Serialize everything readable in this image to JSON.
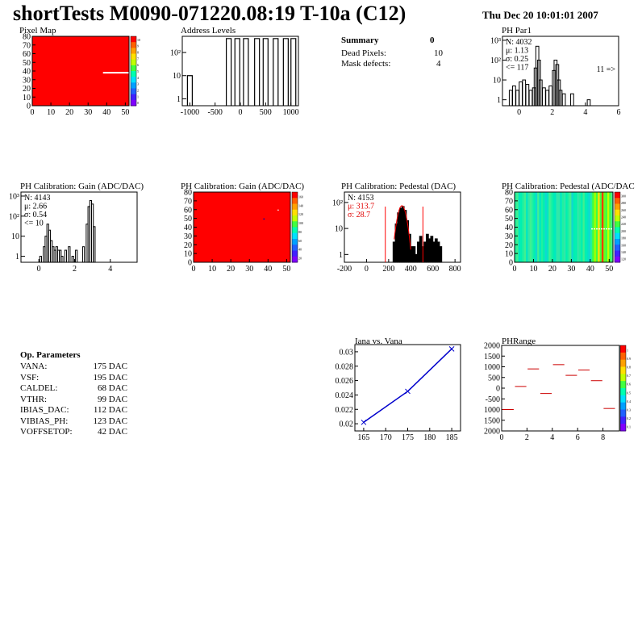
{
  "header": {
    "title": "shortTests M0090-071220.08:19 T-10a (C12)",
    "date": "Thu Dec 20 10:01:01 2007"
  },
  "summary": {
    "title": "Summary",
    "value": "0",
    "rows": [
      {
        "label": "Dead Pixels:",
        "value": "10"
      },
      {
        "label": "Mask defects:",
        "value": "4"
      }
    ]
  },
  "op_params": {
    "title": "Op. Parameters",
    "rows": [
      {
        "label": "VANA:",
        "value": "175 DAC"
      },
      {
        "label": "VSF:",
        "value": "195 DAC"
      },
      {
        "label": "CALDEL:",
        "value": "68 DAC"
      },
      {
        "label": "VTHR:",
        "value": "99 DAC"
      },
      {
        "label": "IBIAS_DAC:",
        "value": "112 DAC"
      },
      {
        "label": "VIBIAS_PH:",
        "value": "123 DAC"
      },
      {
        "label": "VOFFSETOP:",
        "value": "42 DAC"
      }
    ]
  },
  "chart_data": [
    {
      "id": "pixel-map",
      "type": "heatmap",
      "title": "Pixel Map",
      "xlim": [
        0,
        52
      ],
      "ylim": [
        0,
        80
      ],
      "xticks": [
        "0",
        "10",
        "20",
        "30",
        "40",
        "50"
      ],
      "yticks": [
        "0",
        "10",
        "20",
        "30",
        "40",
        "50",
        "60",
        "70",
        "80"
      ],
      "fill_color": "#ff0000",
      "features": [
        {
          "kind": "white-row",
          "x": [
            38,
            52
          ],
          "y": 38
        }
      ],
      "colorbar": [
        "10",
        "9",
        "8",
        "7",
        "6",
        "5",
        "4",
        "3",
        "2",
        "1",
        "0"
      ]
    },
    {
      "id": "address-levels",
      "type": "bar",
      "title": "Address Levels",
      "xlim": [
        -1150,
        1150
      ],
      "log_y": true,
      "xticks": [
        "-1000",
        "-500",
        "0",
        "500",
        "1000"
      ],
      "yticks": [
        "1",
        "10",
        "10²"
      ],
      "peaks": [
        -1000,
        -230,
        -60,
        110,
        330,
        500,
        700,
        900,
        1050
      ],
      "peak_heights": [
        10,
        400,
        400,
        400,
        400,
        400,
        400,
        400,
        400
      ]
    },
    {
      "id": "ph-par1",
      "type": "bar",
      "title": "PH Par1",
      "xlim": [
        -1,
        6
      ],
      "log_y": true,
      "xticks": [
        "0",
        "2",
        "4",
        "6"
      ],
      "yticks": [
        "1",
        "10",
        "10²",
        "10³"
      ],
      "stats": [
        "N: 4032",
        "μ: 1.13",
        "σ: 0.25",
        "<= 117"
      ],
      "overflow_label": "11 =>",
      "x": [
        -0.5,
        -0.3,
        -0.1,
        0.1,
        0.3,
        0.5,
        0.7,
        0.9,
        1.0,
        1.1,
        1.2,
        1.3,
        1.5,
        1.7,
        1.9,
        2.1,
        2.2,
        2.3,
        2.4,
        2.5,
        2.7,
        3.2,
        4.2
      ],
      "y": [
        3,
        5,
        3,
        8,
        10,
        6,
        3,
        4,
        40,
        500,
        100,
        10,
        4,
        3,
        5,
        30,
        100,
        60,
        10,
        3,
        2,
        2,
        1
      ]
    },
    {
      "id": "ph-gain",
      "type": "bar",
      "title": "PH Calibration: Gain (ADC/DAC)",
      "xlim": [
        -1,
        5.5
      ],
      "log_y": true,
      "xticks": [
        "0",
        "2",
        "4"
      ],
      "yticks": [
        "1",
        "10",
        "10²",
        "10³"
      ],
      "stats": [
        "N: 4143",
        "μ: 2.66",
        "σ: 0.54",
        "<= 10"
      ],
      "x": [
        0.1,
        0.3,
        0.4,
        0.5,
        0.6,
        0.7,
        0.8,
        0.9,
        1.0,
        1.1,
        1.2,
        1.3,
        1.5,
        1.7,
        1.9,
        2.1,
        2.5,
        2.7,
        2.8,
        2.9,
        3.0,
        3.1
      ],
      "y": [
        1,
        3,
        10,
        40,
        20,
        6,
        3,
        2,
        3,
        2,
        2,
        1,
        2,
        3,
        1,
        2,
        3,
        40,
        300,
        600,
        400,
        30
      ]
    },
    {
      "id": "ph-gain-map",
      "type": "heatmap",
      "title": "PH Calibration: Gain (ADC/DAC)",
      "xlim": [
        0,
        52
      ],
      "ylim": [
        0,
        80
      ],
      "xticks": [
        "0",
        "10",
        "20",
        "30",
        "40",
        "50"
      ],
      "yticks": [
        "0",
        "10",
        "20",
        "30",
        "40",
        "50",
        "60",
        "70",
        "80"
      ],
      "fill_color": "#ff0000",
      "colorbar_exp": "×10⁶",
      "colorbar": [
        "160",
        "140",
        "120",
        "100",
        "80",
        "60",
        "40",
        "20"
      ]
    },
    {
      "id": "ph-pedestal",
      "type": "bar",
      "title": "PH Calibration: Pedestal (DAC)",
      "xlim": [
        -200,
        850
      ],
      "log_y": true,
      "xticks": [
        "-200",
        "0",
        "200",
        "400",
        "600",
        "800"
      ],
      "yticks": [
        "1",
        "10",
        "10²"
      ],
      "stats": [
        "N: 4153",
        "μ: 313.7",
        "σ: 28.7"
      ],
      "fit_lines_x": [
        170,
        510
      ],
      "x": [
        250,
        270,
        290,
        310,
        330,
        350,
        370,
        390,
        410,
        430,
        450,
        470,
        490,
        510,
        530,
        550,
        570,
        590,
        610,
        630,
        650,
        670
      ],
      "y": [
        3,
        15,
        40,
        60,
        70,
        50,
        20,
        6,
        2,
        2,
        1,
        3,
        5,
        2,
        3,
        6,
        4,
        5,
        3,
        4,
        3,
        2
      ]
    },
    {
      "id": "ph-pedestal-map",
      "type": "heatmap",
      "title": "PH Calibration: Pedestal (ADC/DAC",
      "xlim": [
        0,
        52
      ],
      "ylim": [
        0,
        80
      ],
      "xticks": [
        "0",
        "10",
        "20",
        "30",
        "40",
        "50"
      ],
      "yticks": [
        "0",
        "10",
        "20",
        "30",
        "40",
        "50",
        "60",
        "70",
        "80"
      ],
      "colorbar": [
        "300",
        "280",
        "260",
        "240",
        "220",
        "200",
        "180",
        "160",
        "140",
        "120"
      ]
    },
    {
      "id": "iana-vana",
      "type": "line",
      "title": "Iana vs. Vana",
      "xlim": [
        163,
        187
      ],
      "ylim": [
        0.019,
        0.031
      ],
      "xticks": [
        "165",
        "170",
        "175",
        "180",
        "185"
      ],
      "yticks": [
        "0.02",
        "0.022",
        "0.024",
        "0.026",
        "0.028",
        "0.03"
      ],
      "x": [
        165,
        175,
        185
      ],
      "y": [
        0.0202,
        0.0245,
        0.0304
      ]
    },
    {
      "id": "ph-range",
      "type": "scatter",
      "title": "PHRange",
      "xlim": [
        0,
        9.3
      ],
      "ylim": [
        -2000,
        2000
      ],
      "xticks": [
        "0",
        "2",
        "4",
        "6",
        "8"
      ],
      "yticks": [
        "2000",
        "1500",
        "1000",
        "500",
        "0",
        "-500",
        "1000",
        "1500",
        "2000"
      ],
      "x": [
        0.5,
        1.5,
        2.5,
        3.5,
        4.5,
        5.5,
        6.5,
        7.5,
        8.5
      ],
      "y": [
        -1000,
        80,
        900,
        -250,
        1100,
        600,
        850,
        350,
        -950
      ],
      "colorbar": [
        "1",
        "0.9",
        "0.8",
        "0.7",
        "0.6",
        "0.5",
        "0.4",
        "0.3",
        "0.2",
        "0.1"
      ]
    }
  ]
}
